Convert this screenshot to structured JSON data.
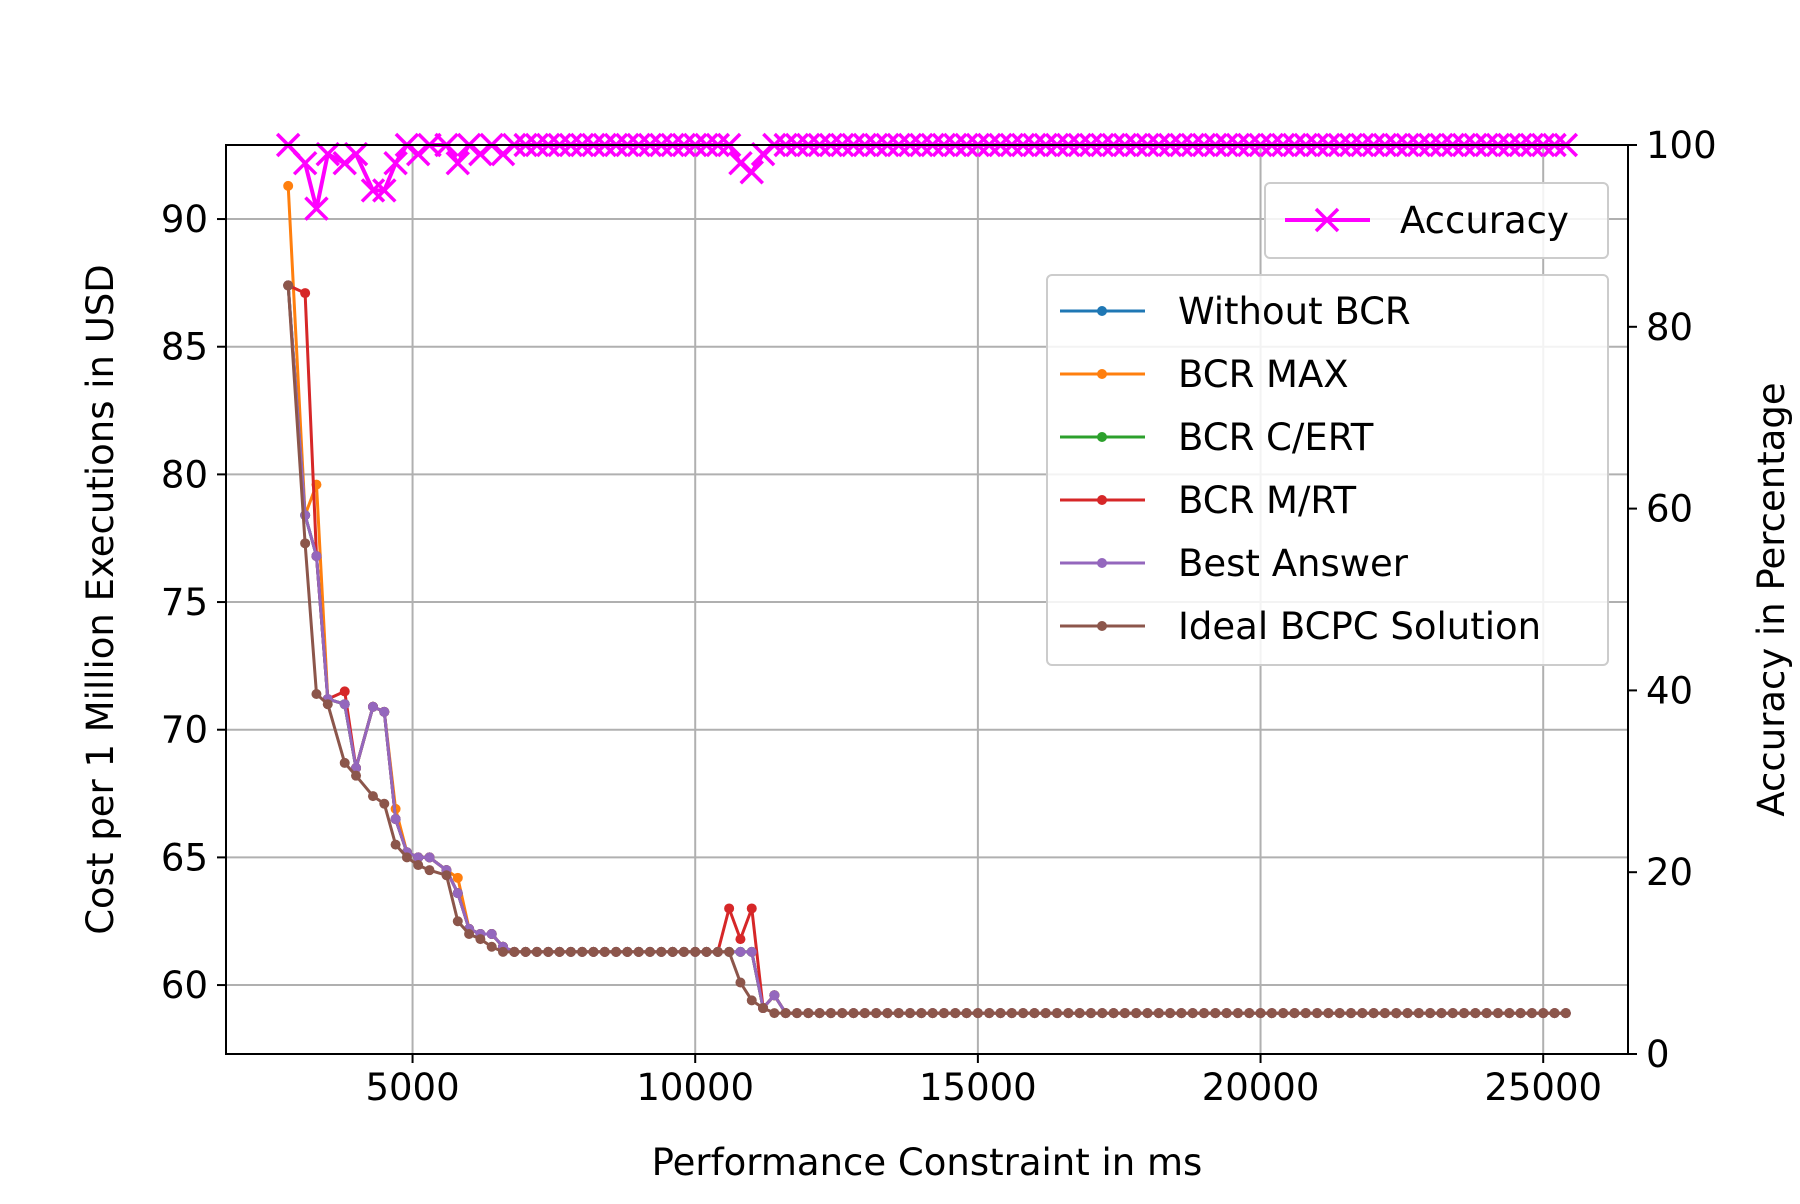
{
  "chart_data": {
    "type": "line",
    "xlabel": "Performance Constraint in ms",
    "ylabel_left": "Cost per 1 Million Executions in USD",
    "ylabel_right": "Accuracy in Percentage",
    "xlim": [
      1700,
      26500
    ],
    "ylim_left": [
      57.3,
      92.9
    ],
    "ylim_right": [
      0,
      100
    ],
    "x_ticks": [
      5000,
      10000,
      15000,
      20000,
      25000
    ],
    "y_ticks_left": [
      60,
      65,
      70,
      75,
      80,
      85,
      90
    ],
    "y_ticks_right": [
      0,
      20,
      40,
      60,
      80,
      100
    ],
    "x_tick_labels": [
      "5000",
      "10000",
      "15000",
      "20000",
      "25000"
    ],
    "y_tick_labels_left": [
      "60",
      "65",
      "70",
      "75",
      "80",
      "85",
      "90"
    ],
    "y_tick_labels_right": [
      "0",
      "20",
      "40",
      "60",
      "80",
      "100"
    ],
    "grid": true,
    "legend_primary_position": "right",
    "legend_secondary_position": "top-right",
    "x": [
      2800,
      3100,
      3300,
      3500,
      3800,
      4000,
      4300,
      4500,
      4700,
      4900,
      5100,
      5300,
      5600,
      5800,
      6000,
      6200,
      6400,
      6600,
      6800,
      7000,
      7200,
      7400,
      7600,
      7800,
      8000,
      8200,
      8400,
      8600,
      8800,
      9000,
      9200,
      9400,
      9600,
      9800,
      10000,
      10200,
      10400,
      10600,
      10800,
      11000,
      11200,
      11400,
      11600,
      11800,
      12000,
      12200,
      12400,
      12600,
      12800,
      13000,
      13200,
      13400,
      13600,
      13800,
      14000,
      14200,
      14400,
      14600,
      14800,
      15000,
      15200,
      15400,
      15600,
      15800,
      16000,
      16200,
      16400,
      16600,
      16800,
      17000,
      17200,
      17400,
      17600,
      17800,
      18000,
      18200,
      18400,
      18600,
      18800,
      19000,
      19200,
      19400,
      19600,
      19800,
      20000,
      20200,
      20400,
      20600,
      20800,
      21000,
      21200,
      21400,
      21600,
      21800,
      22000,
      22200,
      22400,
      22600,
      22800,
      23000,
      23200,
      23400,
      23600,
      23800,
      24000,
      24200,
      24400,
      24600,
      24800,
      25000,
      25200,
      25400
    ],
    "series": [
      {
        "name": "Without BCR",
        "axis": "left",
        "color": "#1f77b4",
        "marker": "dot",
        "values": [
          87.4,
          78.4,
          76.8,
          71.2,
          71.0,
          68.5,
          70.9,
          70.7,
          66.5,
          65.2,
          65.0,
          65.0,
          64.5,
          63.6,
          62.2,
          62.0,
          62.0,
          61.5,
          61.3,
          61.3,
          61.3,
          61.3,
          61.3,
          61.3,
          61.3,
          61.3,
          61.3,
          61.3,
          61.3,
          61.3,
          61.3,
          61.3,
          61.3,
          61.3,
          61.3,
          61.3,
          61.3,
          61.3,
          61.3,
          61.3,
          59.1,
          59.6,
          58.9,
          58.9,
          58.9,
          58.9,
          58.9,
          58.9,
          58.9,
          58.9,
          58.9,
          58.9,
          58.9,
          58.9,
          58.9,
          58.9,
          58.9,
          58.9,
          58.9,
          58.9,
          58.9,
          58.9,
          58.9,
          58.9,
          58.9,
          58.9,
          58.9,
          58.9,
          58.9,
          58.9,
          58.9,
          58.9,
          58.9,
          58.9,
          58.9,
          58.9,
          58.9,
          58.9,
          58.9,
          58.9,
          58.9,
          58.9,
          58.9,
          58.9,
          58.9,
          58.9,
          58.9,
          58.9,
          58.9,
          58.9,
          58.9,
          58.9,
          58.9,
          58.9,
          58.9,
          58.9,
          58.9,
          58.9,
          58.9,
          58.9,
          58.9,
          58.9,
          58.9,
          58.9,
          58.9,
          58.9,
          58.9,
          58.9,
          58.9,
          58.9,
          58.9,
          58.9
        ]
      },
      {
        "name": "BCR MAX",
        "axis": "left",
        "color": "#ff7f0e",
        "marker": "dot",
        "values": [
          91.3,
          78.4,
          79.6,
          71.2,
          71.0,
          68.5,
          70.9,
          70.7,
          66.9,
          65.2,
          65.0,
          65.0,
          64.5,
          64.2,
          62.2,
          62.0,
          62.0,
          61.5,
          61.3,
          61.3,
          61.3,
          61.3,
          61.3,
          61.3,
          61.3,
          61.3,
          61.3,
          61.3,
          61.3,
          61.3,
          61.3,
          61.3,
          61.3,
          61.3,
          61.3,
          61.3,
          61.3,
          61.3,
          61.3,
          61.3,
          59.1,
          59.6,
          58.9,
          58.9,
          58.9,
          58.9,
          58.9,
          58.9,
          58.9,
          58.9,
          58.9,
          58.9,
          58.9,
          58.9,
          58.9,
          58.9,
          58.9,
          58.9,
          58.9,
          58.9,
          58.9,
          58.9,
          58.9,
          58.9,
          58.9,
          58.9,
          58.9,
          58.9,
          58.9,
          58.9,
          58.9,
          58.9,
          58.9,
          58.9,
          58.9,
          58.9,
          58.9,
          58.9,
          58.9,
          58.9,
          58.9,
          58.9,
          58.9,
          58.9,
          58.9,
          58.9,
          58.9,
          58.9,
          58.9,
          58.9,
          58.9,
          58.9,
          58.9,
          58.9,
          58.9,
          58.9,
          58.9,
          58.9,
          58.9,
          58.9,
          58.9,
          58.9,
          58.9,
          58.9,
          58.9,
          58.9,
          58.9,
          58.9,
          58.9,
          58.9,
          58.9,
          58.9
        ]
      },
      {
        "name": "BCR C/ERT",
        "axis": "left",
        "color": "#2ca02c",
        "marker": "dot",
        "values": [
          87.4,
          78.4,
          76.8,
          71.2,
          71.0,
          68.5,
          70.9,
          70.7,
          66.5,
          65.2,
          65.0,
          65.0,
          64.5,
          63.6,
          62.2,
          62.0,
          62.0,
          61.5,
          61.3,
          61.3,
          61.3,
          61.3,
          61.3,
          61.3,
          61.3,
          61.3,
          61.3,
          61.3,
          61.3,
          61.3,
          61.3,
          61.3,
          61.3,
          61.3,
          61.3,
          61.3,
          61.3,
          61.3,
          61.3,
          61.3,
          59.1,
          59.6,
          58.9,
          58.9,
          58.9,
          58.9,
          58.9,
          58.9,
          58.9,
          58.9,
          58.9,
          58.9,
          58.9,
          58.9,
          58.9,
          58.9,
          58.9,
          58.9,
          58.9,
          58.9,
          58.9,
          58.9,
          58.9,
          58.9,
          58.9,
          58.9,
          58.9,
          58.9,
          58.9,
          58.9,
          58.9,
          58.9,
          58.9,
          58.9,
          58.9,
          58.9,
          58.9,
          58.9,
          58.9,
          58.9,
          58.9,
          58.9,
          58.9,
          58.9,
          58.9,
          58.9,
          58.9,
          58.9,
          58.9,
          58.9,
          58.9,
          58.9,
          58.9,
          58.9,
          58.9,
          58.9,
          58.9,
          58.9,
          58.9,
          58.9,
          58.9,
          58.9,
          58.9,
          58.9,
          58.9,
          58.9,
          58.9,
          58.9,
          58.9,
          58.9,
          58.9,
          58.9
        ]
      },
      {
        "name": "BCR M/RT",
        "axis": "left",
        "color": "#d62728",
        "marker": "dot",
        "values": [
          87.4,
          87.1,
          76.8,
          71.2,
          71.5,
          68.5,
          70.9,
          70.7,
          66.5,
          65.2,
          65.0,
          65.0,
          64.5,
          63.6,
          62.2,
          62.0,
          62.0,
          61.5,
          61.3,
          61.3,
          61.3,
          61.3,
          61.3,
          61.3,
          61.3,
          61.3,
          61.3,
          61.3,
          61.3,
          61.3,
          61.3,
          61.3,
          61.3,
          61.3,
          61.3,
          61.3,
          61.3,
          63.0,
          61.8,
          63.0,
          59.1,
          59.6,
          58.9,
          58.9,
          58.9,
          58.9,
          58.9,
          58.9,
          58.9,
          58.9,
          58.9,
          58.9,
          58.9,
          58.9,
          58.9,
          58.9,
          58.9,
          58.9,
          58.9,
          58.9,
          58.9,
          58.9,
          58.9,
          58.9,
          58.9,
          58.9,
          58.9,
          58.9,
          58.9,
          58.9,
          58.9,
          58.9,
          58.9,
          58.9,
          58.9,
          58.9,
          58.9,
          58.9,
          58.9,
          58.9,
          58.9,
          58.9,
          58.9,
          58.9,
          58.9,
          58.9,
          58.9,
          58.9,
          58.9,
          58.9,
          58.9,
          58.9,
          58.9,
          58.9,
          58.9,
          58.9,
          58.9,
          58.9,
          58.9,
          58.9,
          58.9,
          58.9,
          58.9,
          58.9,
          58.9,
          58.9,
          58.9,
          58.9,
          58.9,
          58.9,
          58.9,
          58.9
        ]
      },
      {
        "name": "Best Answer",
        "axis": "left",
        "color": "#9467bd",
        "marker": "dot",
        "values": [
          87.4,
          78.4,
          76.8,
          71.2,
          71.0,
          68.5,
          70.9,
          70.7,
          66.5,
          65.2,
          65.0,
          65.0,
          64.5,
          63.6,
          62.2,
          62.0,
          62.0,
          61.5,
          61.3,
          61.3,
          61.3,
          61.3,
          61.3,
          61.3,
          61.3,
          61.3,
          61.3,
          61.3,
          61.3,
          61.3,
          61.3,
          61.3,
          61.3,
          61.3,
          61.3,
          61.3,
          61.3,
          61.3,
          61.3,
          61.3,
          59.1,
          59.6,
          58.9,
          58.9,
          58.9,
          58.9,
          58.9,
          58.9,
          58.9,
          58.9,
          58.9,
          58.9,
          58.9,
          58.9,
          58.9,
          58.9,
          58.9,
          58.9,
          58.9,
          58.9,
          58.9,
          58.9,
          58.9,
          58.9,
          58.9,
          58.9,
          58.9,
          58.9,
          58.9,
          58.9,
          58.9,
          58.9,
          58.9,
          58.9,
          58.9,
          58.9,
          58.9,
          58.9,
          58.9,
          58.9,
          58.9,
          58.9,
          58.9,
          58.9,
          58.9,
          58.9,
          58.9,
          58.9,
          58.9,
          58.9,
          58.9,
          58.9,
          58.9,
          58.9,
          58.9,
          58.9,
          58.9,
          58.9,
          58.9,
          58.9,
          58.9,
          58.9,
          58.9,
          58.9,
          58.9,
          58.9,
          58.9,
          58.9,
          58.9,
          58.9,
          58.9,
          58.9
        ]
      },
      {
        "name": "Ideal BCPC Solution",
        "axis": "left",
        "color": "#8c564b",
        "marker": "dot",
        "values": [
          87.4,
          77.3,
          71.4,
          71.0,
          68.7,
          68.2,
          67.4,
          67.1,
          65.5,
          65.0,
          64.7,
          64.5,
          64.3,
          62.5,
          62.0,
          61.8,
          61.5,
          61.3,
          61.3,
          61.3,
          61.3,
          61.3,
          61.3,
          61.3,
          61.3,
          61.3,
          61.3,
          61.3,
          61.3,
          61.3,
          61.3,
          61.3,
          61.3,
          61.3,
          61.3,
          61.3,
          61.3,
          61.3,
          60.1,
          59.4,
          59.1,
          58.9,
          58.9,
          58.9,
          58.9,
          58.9,
          58.9,
          58.9,
          58.9,
          58.9,
          58.9,
          58.9,
          58.9,
          58.9,
          58.9,
          58.9,
          58.9,
          58.9,
          58.9,
          58.9,
          58.9,
          58.9,
          58.9,
          58.9,
          58.9,
          58.9,
          58.9,
          58.9,
          58.9,
          58.9,
          58.9,
          58.9,
          58.9,
          58.9,
          58.9,
          58.9,
          58.9,
          58.9,
          58.9,
          58.9,
          58.9,
          58.9,
          58.9,
          58.9,
          58.9,
          58.9,
          58.9,
          58.9,
          58.9,
          58.9,
          58.9,
          58.9,
          58.9,
          58.9,
          58.9,
          58.9,
          58.9,
          58.9,
          58.9,
          58.9,
          58.9,
          58.9,
          58.9,
          58.9,
          58.9,
          58.9,
          58.9,
          58.9,
          58.9,
          58.9,
          58.9,
          58.9
        ]
      },
      {
        "name": "Accuracy",
        "axis": "right",
        "color": "#ff00ff",
        "marker": "x",
        "values": [
          100,
          98,
          93,
          99,
          98,
          99,
          95,
          95,
          98,
          100,
          99,
          100,
          100,
          98,
          100,
          99,
          100,
          99,
          100,
          100,
          100,
          100,
          100,
          100,
          100,
          100,
          100,
          100,
          100,
          100,
          100,
          100,
          100,
          100,
          100,
          100,
          100,
          100,
          98,
          97,
          99,
          100,
          100,
          100,
          100,
          100,
          100,
          100,
          100,
          100,
          100,
          100,
          100,
          100,
          100,
          100,
          100,
          100,
          100,
          100,
          100,
          100,
          100,
          100,
          100,
          100,
          100,
          100,
          100,
          100,
          100,
          100,
          100,
          100,
          100,
          100,
          100,
          100,
          100,
          100,
          100,
          100,
          100,
          100,
          100,
          100,
          100,
          100,
          100,
          100,
          100,
          100,
          100,
          100,
          100,
          100,
          100,
          100,
          100,
          100,
          100,
          100,
          100,
          100,
          100,
          100,
          100,
          100,
          100,
          100,
          100,
          100
        ]
      }
    ]
  }
}
